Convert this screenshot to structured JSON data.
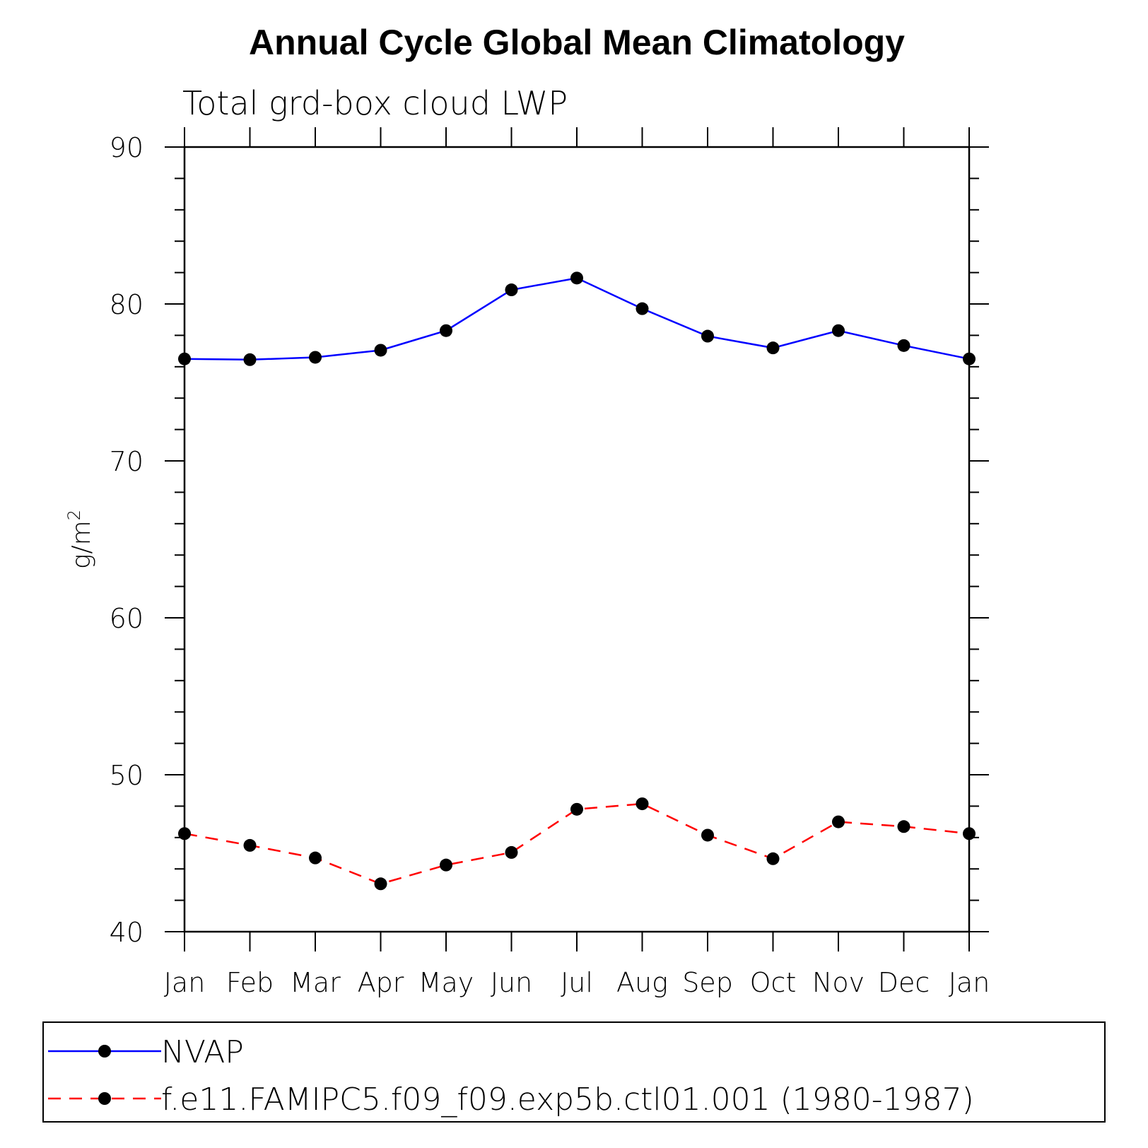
{
  "chart_data": {
    "type": "line",
    "title": "Annual Cycle Global Mean Climatology",
    "subtitle": "Total grd-box cloud LWP",
    "xlabel": "",
    "ylabel": "g/m",
    "ylabel_superscript": "2",
    "categories": [
      "Jan",
      "Feb",
      "Mar",
      "Apr",
      "May",
      "Jun",
      "Jul",
      "Aug",
      "Sep",
      "Oct",
      "Nov",
      "Dec",
      "Jan"
    ],
    "ylim": [
      40,
      90
    ],
    "yticks": [
      40,
      50,
      60,
      70,
      80,
      90
    ],
    "y_minor_step": 2,
    "grid": false,
    "legend_placement": "bottom",
    "series": [
      {
        "name": "NVAP",
        "color": "#0000ff",
        "dash": "solid",
        "values": [
          76.5,
          76.45,
          76.6,
          77.05,
          78.3,
          80.9,
          81.65,
          79.7,
          77.95,
          77.2,
          78.3,
          77.35,
          76.5
        ]
      },
      {
        "name": "f.e11.FAMIPC5.f09_f09.exp5b.ctl01.001 (1980-1987)",
        "color": "#ff0000",
        "dash": "dashed",
        "values": [
          46.25,
          45.5,
          44.7,
          43.05,
          44.25,
          45.05,
          47.8,
          48.15,
          46.15,
          44.65,
          47.0,
          46.7,
          46.25
        ]
      }
    ]
  }
}
